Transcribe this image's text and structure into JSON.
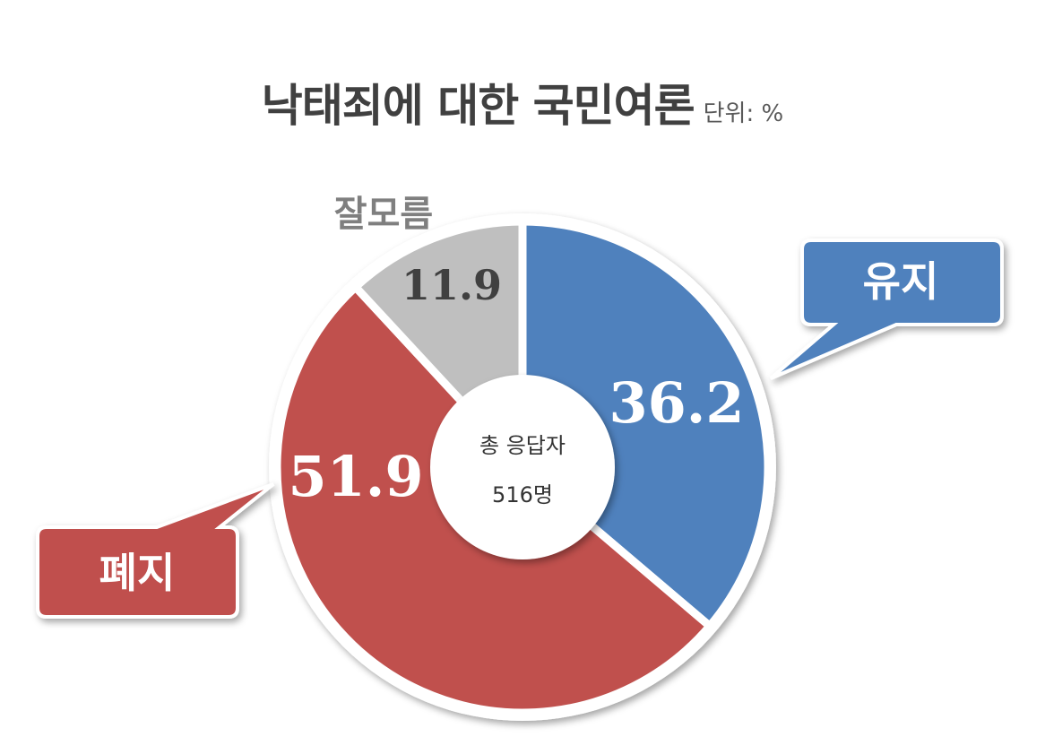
{
  "chart_data": {
    "type": "pie",
    "title": "낙태죄에 대한 국민여론",
    "unit": "단위: %",
    "center_label": "총 응답자",
    "center_value": "516명",
    "slices": [
      {
        "name": "유지",
        "value": 36.2,
        "label": "36.2",
        "color": "#4F81BD"
      },
      {
        "name": "폐지",
        "value": 51.9,
        "label": "51.9",
        "color": "#C0504D"
      },
      {
        "name": "잘모름",
        "value": 11.9,
        "label": "11.9",
        "color": "#BFBFBF"
      }
    ]
  }
}
